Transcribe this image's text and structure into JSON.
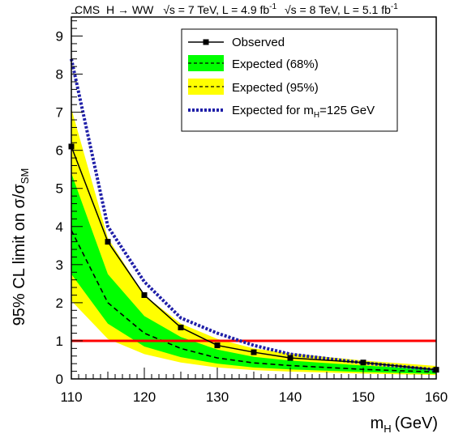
{
  "chart_data": {
    "type": "line",
    "header": {
      "experiment": "CMS",
      "process": "H → WW",
      "dataset1_sqrts": "s = 7 TeV, L = 4.9 fb",
      "dataset2_sqrts": "s = 8 TeV, L = 5.1 fb",
      "lumi_exponent": "-1"
    },
    "xlabel": {
      "base": "m",
      "sub": "H",
      "unit": "(GeV)"
    },
    "ylabel": {
      "prefix": "95% CL limit on σ/σ",
      "sub": "SM"
    },
    "xlim": [
      110,
      160
    ],
    "ylim": [
      0,
      9.5
    ],
    "x_ticks": [
      110,
      120,
      130,
      140,
      150,
      160
    ],
    "x_tick_labels": [
      "110",
      "120",
      "130",
      "140",
      "150",
      "160"
    ],
    "y_ticks": [
      0,
      1,
      2,
      3,
      4,
      5,
      6,
      7,
      8,
      9
    ],
    "y_tick_labels": [
      "0",
      "1",
      "2",
      "3",
      "4",
      "5",
      "6",
      "7",
      "8",
      "9"
    ],
    "reference_line": {
      "y": 1,
      "color": "#ff0000"
    },
    "legend": {
      "placement": "top-right",
      "entries": [
        {
          "label": "Observed",
          "kind": "observed"
        },
        {
          "label": "Expected (68%)",
          "kind": "band68"
        },
        {
          "label": "Expected (95%)",
          "kind": "band95"
        },
        {
          "label_prefix": "Expected for m",
          "label_sub": "H",
          "label_suffix": "=125 GeV",
          "kind": "signal"
        }
      ]
    },
    "colors": {
      "observed": "#000000",
      "expected_median": "#000000",
      "band68": "#00ff00",
      "band95": "#ffff00",
      "signal_injected": "#1f1fa8",
      "reference": "#ff0000"
    },
    "series": [
      {
        "name": "Observed",
        "x": [
          110,
          115,
          120,
          125,
          130,
          135,
          140,
          150,
          160
        ],
        "values": [
          6.1,
          3.6,
          2.2,
          1.35,
          0.88,
          0.7,
          0.55,
          0.43,
          0.24
        ]
      },
      {
        "name": "Expected",
        "x": [
          110,
          115,
          120,
          125,
          130,
          135,
          140,
          150,
          160
        ],
        "values": [
          3.9,
          2.0,
          1.2,
          0.8,
          0.55,
          0.42,
          0.35,
          0.25,
          0.18
        ]
      },
      {
        "name": "Expected (68%)",
        "x": [
          110,
          115,
          120,
          125,
          130,
          135,
          140,
          150,
          160
        ],
        "low": [
          2.75,
          1.45,
          0.85,
          0.57,
          0.4,
          0.3,
          0.25,
          0.18,
          0.13
        ],
        "high": [
          5.4,
          2.75,
          1.65,
          1.1,
          0.77,
          0.58,
          0.48,
          0.35,
          0.25
        ]
      },
      {
        "name": "Expected (95%)",
        "x": [
          110,
          115,
          120,
          125,
          130,
          135,
          140,
          150,
          160
        ],
        "low": [
          2.05,
          1.05,
          0.65,
          0.43,
          0.3,
          0.23,
          0.19,
          0.14,
          0.1
        ],
        "high": [
          7.1,
          3.7,
          2.2,
          1.45,
          1.05,
          0.8,
          0.67,
          0.48,
          0.34
        ]
      },
      {
        "name": "Expected for mH=125 GeV",
        "x": [
          110,
          115,
          120,
          125,
          130,
          135,
          140,
          150,
          160
        ],
        "values": [
          8.4,
          4.0,
          2.55,
          1.6,
          1.2,
          0.88,
          0.65,
          0.42,
          0.24
        ]
      }
    ]
  }
}
